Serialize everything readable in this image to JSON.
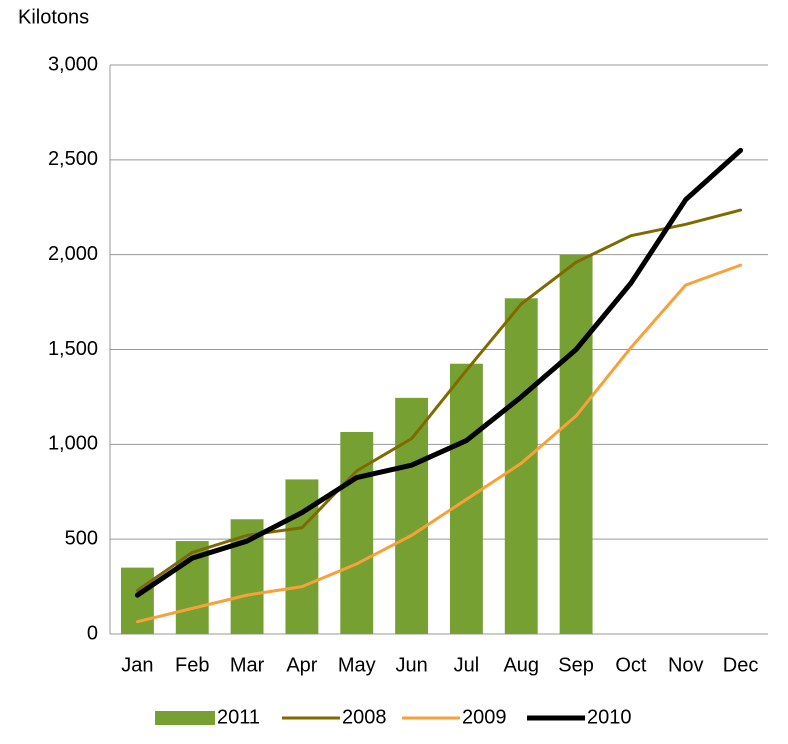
{
  "chart_data": {
    "type": "combo",
    "y_label": "Kilotons",
    "categories": [
      "Jan",
      "Feb",
      "Mar",
      "Apr",
      "May",
      "Jun",
      "Jul",
      "Aug",
      "Sep",
      "Oct",
      "Nov",
      "Dec"
    ],
    "series": [
      {
        "name": "2011",
        "type": "bar",
        "color": "#77a033",
        "values": [
          350,
          490,
          605,
          815,
          1065,
          1245,
          1425,
          1770,
          2000,
          null,
          null,
          null
        ]
      },
      {
        "name": "2008",
        "type": "line",
        "color": "#7f6a00",
        "width": 3,
        "values": [
          230,
          430,
          520,
          560,
          860,
          1030,
          1390,
          1740,
          1960,
          2100,
          2160,
          2235
        ]
      },
      {
        "name": "2009",
        "type": "line",
        "color": "#f7a13a",
        "width": 3,
        "values": [
          65,
          135,
          205,
          250,
          370,
          520,
          710,
          900,
          1150,
          1510,
          1840,
          1945
        ]
      },
      {
        "name": "2010",
        "type": "line",
        "color": "#000000",
        "width": 5,
        "values": [
          205,
          400,
          490,
          640,
          825,
          890,
          1020,
          1250,
          1500,
          1850,
          2290,
          2550
        ]
      }
    ],
    "ylim": [
      0,
      3000
    ],
    "yticks": [
      0,
      500,
      {
        "value": 1000,
        "label": "1,000"
      },
      {
        "value": 1500,
        "label": "1,500"
      },
      {
        "value": 2000,
        "label": "2,000"
      },
      {
        "value": 2500,
        "label": "2,500"
      },
      {
        "value": 3000,
        "label": "3,000"
      }
    ],
    "grid": true,
    "legend": "bottom"
  }
}
